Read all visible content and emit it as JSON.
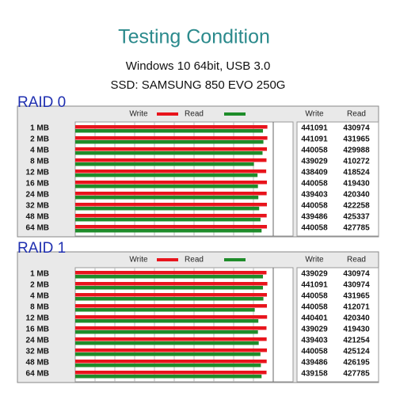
{
  "title": "Testing Condition",
  "subtitle": [
    "Windows 10 64bit, USB 3.0",
    "SSD: SAMSUNG 850 EVO 250G"
  ],
  "chart_data": [
    {
      "type": "bar",
      "orientation": "horizontal",
      "title": "RAID 0",
      "categories": [
        "1 MB",
        "2 MB",
        "4 MB",
        "8 MB",
        "12 MB",
        "16 MB",
        "24 MB",
        "32 MB",
        "48 MB",
        "64 MB"
      ],
      "series": [
        {
          "name": "Write",
          "color": "#e8141c",
          "values": [
            441091,
            441091,
            440058,
            439029,
            438409,
            440058,
            439403,
            440058,
            439486,
            440058
          ]
        },
        {
          "name": "Read",
          "color": "#1e8c2a",
          "values": [
            430974,
            431965,
            429988,
            410272,
            418524,
            419430,
            420340,
            422258,
            425337,
            427785
          ]
        }
      ],
      "xlim": [
        0,
        500000
      ],
      "grid": true
    },
    {
      "type": "bar",
      "orientation": "horizontal",
      "title": "RAID 1",
      "categories": [
        "1 MB",
        "2 MB",
        "4 MB",
        "8 MB",
        "12 MB",
        "16 MB",
        "24 MB",
        "32 MB",
        "48 MB",
        "64 MB"
      ],
      "series": [
        {
          "name": "Write",
          "color": "#e8141c",
          "values": [
            439029,
            441091,
            440058,
            440058,
            440401,
            439029,
            439403,
            440058,
            439486,
            439158
          ]
        },
        {
          "name": "Read",
          "color": "#1e8c2a",
          "values": [
            430974,
            430974,
            431965,
            412071,
            420340,
            419430,
            421254,
            425124,
            426195,
            427785
          ]
        }
      ],
      "xlim": [
        0,
        500000
      ],
      "grid": true
    }
  ]
}
